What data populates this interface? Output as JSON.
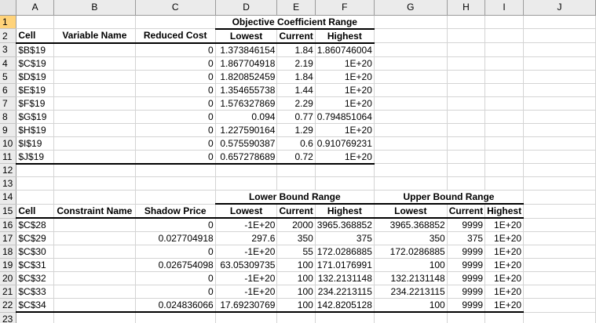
{
  "columns": [
    "A",
    "B",
    "C",
    "D",
    "E",
    "F",
    "G",
    "H",
    "I",
    "J"
  ],
  "rows": [
    {
      "num": "1",
      "cells": [
        "",
        "",
        "",
        "",
        "Objective Coefficient Range",
        "",
        "",
        "",
        "",
        ""
      ]
    },
    {
      "num": "2",
      "cells": [
        "Cell",
        "Variable Name",
        "Reduced Cost",
        "Lowest",
        "Current",
        "Highest",
        "",
        "",
        "",
        ""
      ]
    },
    {
      "num": "3",
      "cells": [
        "$B$19",
        "",
        "0",
        "1.373846154",
        "1.84",
        "1.860746004",
        "",
        "",
        "",
        ""
      ]
    },
    {
      "num": "4",
      "cells": [
        "$C$19",
        "",
        "0",
        "1.867704918",
        "2.19",
        "1E+20",
        "",
        "",
        "",
        ""
      ]
    },
    {
      "num": "5",
      "cells": [
        "$D$19",
        "",
        "0",
        "1.820852459",
        "1.84",
        "1E+20",
        "",
        "",
        "",
        ""
      ]
    },
    {
      "num": "6",
      "cells": [
        "$E$19",
        "",
        "0",
        "1.354655738",
        "1.44",
        "1E+20",
        "",
        "",
        "",
        ""
      ]
    },
    {
      "num": "7",
      "cells": [
        "$F$19",
        "",
        "0",
        "1.576327869",
        "2.29",
        "1E+20",
        "",
        "",
        "",
        ""
      ]
    },
    {
      "num": "8",
      "cells": [
        "$G$19",
        "",
        "0",
        "0.094",
        "0.77",
        "0.794851064",
        "",
        "",
        "",
        ""
      ]
    },
    {
      "num": "9",
      "cells": [
        "$H$19",
        "",
        "0",
        "1.227590164",
        "1.29",
        "1E+20",
        "",
        "",
        "",
        ""
      ]
    },
    {
      "num": "10",
      "cells": [
        "$I$19",
        "",
        "0",
        "0.575590387",
        "0.6",
        "0.910769231",
        "",
        "",
        "",
        ""
      ]
    },
    {
      "num": "11",
      "cells": [
        "$J$19",
        "",
        "0",
        "0.657278689",
        "0.72",
        "1E+20",
        "",
        "",
        "",
        ""
      ]
    },
    {
      "num": "12",
      "cells": [
        "",
        "",
        "",
        "",
        "",
        "",
        "",
        "",
        "",
        ""
      ]
    },
    {
      "num": "13",
      "cells": [
        "",
        "",
        "",
        "",
        "",
        "",
        "",
        "",
        "",
        ""
      ]
    },
    {
      "num": "14",
      "cells": [
        "",
        "",
        "",
        "",
        "Lower Bound Range",
        "",
        "",
        "Upper Bound Range",
        "",
        ""
      ]
    },
    {
      "num": "15",
      "cells": [
        "Cell",
        "Constraint Name",
        "Shadow Price",
        "Lowest",
        "Current",
        "Highest",
        "Lowest",
        "Current",
        "Highest",
        ""
      ]
    },
    {
      "num": "16",
      "cells": [
        "$C$28",
        "",
        "0",
        "-1E+20",
        "2000",
        "3965.368852",
        "3965.368852",
        "9999",
        "1E+20",
        ""
      ]
    },
    {
      "num": "17",
      "cells": [
        "$C$29",
        "",
        "0.027704918",
        "297.6",
        "350",
        "375",
        "350",
        "375",
        "1E+20",
        ""
      ]
    },
    {
      "num": "18",
      "cells": [
        "$C$30",
        "",
        "0",
        "-1E+20",
        "55",
        "172.0286885",
        "172.0286885",
        "9999",
        "1E+20",
        ""
      ]
    },
    {
      "num": "19",
      "cells": [
        "$C$31",
        "",
        "0.026754098",
        "63.05309735",
        "100",
        "171.0176991",
        "100",
        "9999",
        "1E+20",
        ""
      ]
    },
    {
      "num": "20",
      "cells": [
        "$C$32",
        "",
        "0",
        "-1E+20",
        "100",
        "132.2131148",
        "132.2131148",
        "9999",
        "1E+20",
        ""
      ]
    },
    {
      "num": "21",
      "cells": [
        "$C$33",
        "",
        "0",
        "-1E+20",
        "100",
        "234.2213115",
        "234.2213115",
        "9999",
        "1E+20",
        ""
      ]
    },
    {
      "num": "22",
      "cells": [
        "$C$34",
        "",
        "0.024836066",
        "17.69230769",
        "100",
        "142.8205128",
        "100",
        "9999",
        "1E+20",
        ""
      ]
    },
    {
      "num": "23",
      "cells": [
        "",
        "",
        "",
        "",
        "",
        "",
        "",
        "",
        "",
        ""
      ]
    }
  ],
  "colors": {
    "header_bg": "#ebebeb",
    "active_row_header": "#ffd37a",
    "gridline": "#d4d4d4",
    "border": "#000000"
  }
}
